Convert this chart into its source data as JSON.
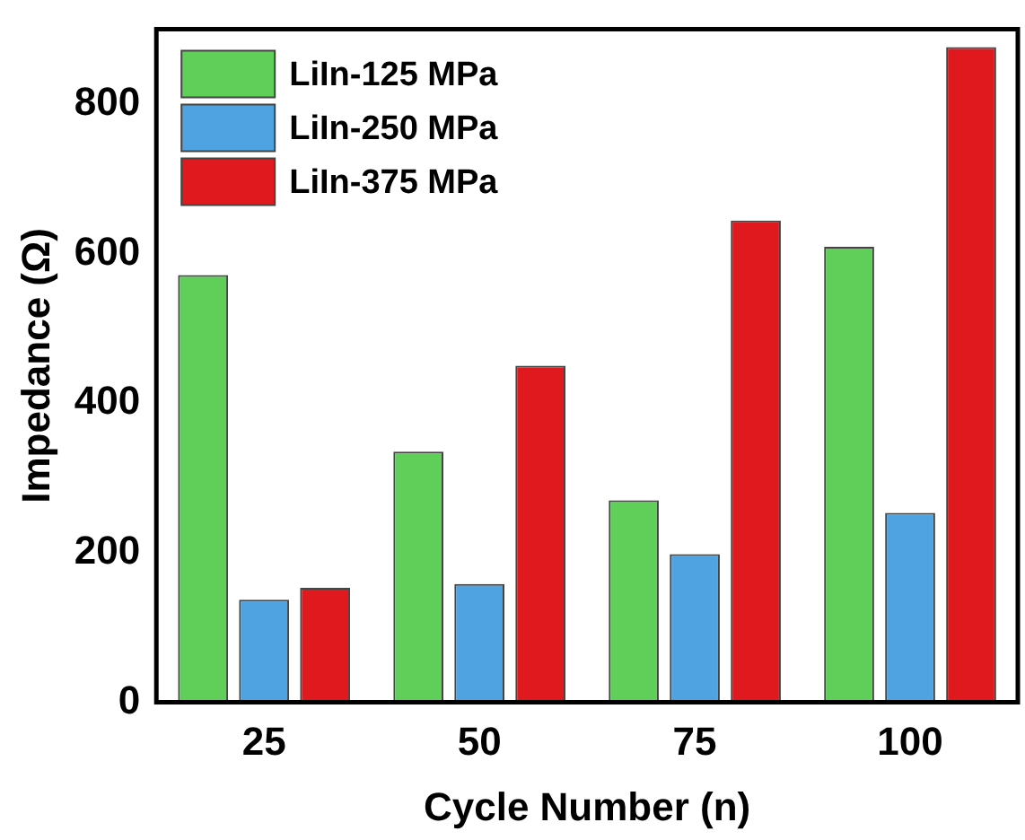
{
  "chart_data": {
    "type": "bar",
    "xlabel": "Cycle Number (n)",
    "ylabel": "Impedance (Ω)",
    "categories": [
      "25",
      "50",
      "75",
      "100"
    ],
    "series": [
      {
        "name": "LiIn-125 MPa",
        "color": "#5fcf5a",
        "values": [
          571,
          335,
          270,
          609
        ]
      },
      {
        "name": "LiIn-250 MPa",
        "color": "#4ea3e0",
        "values": [
          137,
          158,
          198,
          253
        ]
      },
      {
        "name": "LiIn-375 MPa",
        "color": "#e0191e",
        "values": [
          153,
          450,
          644,
          876
        ]
      }
    ],
    "ylim": [
      0,
      900
    ],
    "yticks": [
      0,
      200,
      400,
      600,
      800
    ],
    "grid": false,
    "legend": "top left"
  }
}
